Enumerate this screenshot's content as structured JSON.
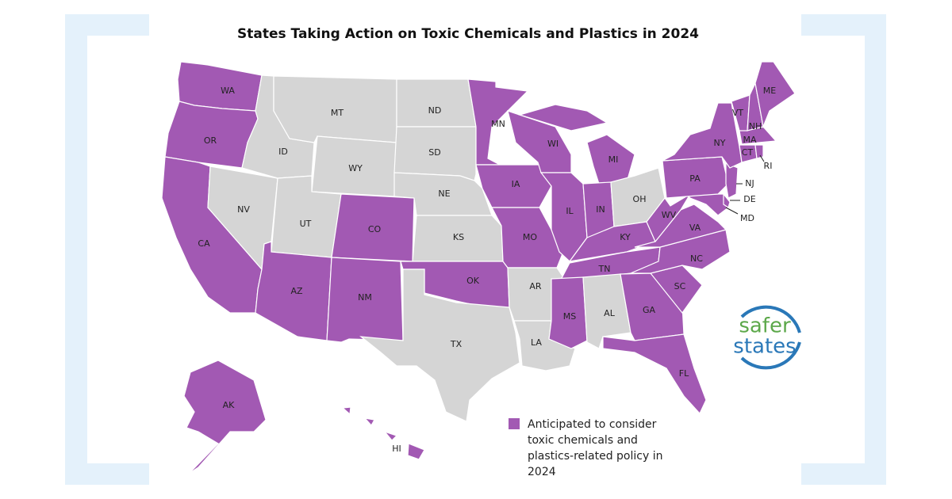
{
  "title": "States Taking Action on Toxic Chemicals and Plastics in 2024",
  "colors": {
    "action": "#a259b3",
    "other": "#d5d5d5",
    "border": "#ffffff"
  },
  "states": [
    {
      "abbr": "WA",
      "action": true
    },
    {
      "abbr": "OR",
      "action": true
    },
    {
      "abbr": "CA",
      "action": true
    },
    {
      "abbr": "NV",
      "action": false
    },
    {
      "abbr": "ID",
      "action": false
    },
    {
      "abbr": "MT",
      "action": false
    },
    {
      "abbr": "WY",
      "action": false
    },
    {
      "abbr": "UT",
      "action": false
    },
    {
      "abbr": "CO",
      "action": true
    },
    {
      "abbr": "AZ",
      "action": true
    },
    {
      "abbr": "NM",
      "action": true
    },
    {
      "abbr": "ND",
      "action": false
    },
    {
      "abbr": "SD",
      "action": false
    },
    {
      "abbr": "NE",
      "action": false
    },
    {
      "abbr": "KS",
      "action": false
    },
    {
      "abbr": "OK",
      "action": true
    },
    {
      "abbr": "TX",
      "action": false
    },
    {
      "abbr": "MN",
      "action": true
    },
    {
      "abbr": "IA",
      "action": true
    },
    {
      "abbr": "MO",
      "action": true
    },
    {
      "abbr": "AR",
      "action": false
    },
    {
      "abbr": "LA",
      "action": false
    },
    {
      "abbr": "WI",
      "action": true
    },
    {
      "abbr": "IL",
      "action": true
    },
    {
      "abbr": "MI",
      "action": true
    },
    {
      "abbr": "IN",
      "action": true
    },
    {
      "abbr": "OH",
      "action": false
    },
    {
      "abbr": "KY",
      "action": true
    },
    {
      "abbr": "TN",
      "action": true
    },
    {
      "abbr": "MS",
      "action": true
    },
    {
      "abbr": "AL",
      "action": false
    },
    {
      "abbr": "GA",
      "action": true
    },
    {
      "abbr": "FL",
      "action": true
    },
    {
      "abbr": "SC",
      "action": true
    },
    {
      "abbr": "NC",
      "action": true
    },
    {
      "abbr": "VA",
      "action": true
    },
    {
      "abbr": "WV",
      "action": true
    },
    {
      "abbr": "MD",
      "action": true
    },
    {
      "abbr": "DE",
      "action": true
    },
    {
      "abbr": "PA",
      "action": true
    },
    {
      "abbr": "NJ",
      "action": true
    },
    {
      "abbr": "NY",
      "action": true
    },
    {
      "abbr": "CT",
      "action": true
    },
    {
      "abbr": "RI",
      "action": true
    },
    {
      "abbr": "MA",
      "action": true
    },
    {
      "abbr": "VT",
      "action": true
    },
    {
      "abbr": "NH",
      "action": true
    },
    {
      "abbr": "ME",
      "action": true
    },
    {
      "abbr": "AK",
      "action": true
    },
    {
      "abbr": "HI",
      "action": true
    }
  ],
  "legend": {
    "lines": [
      "Anticipated to consider",
      "toxic chemicals and",
      "plastics-related policy in",
      "2024"
    ]
  },
  "logo": {
    "line1": "safer",
    "line2": "states"
  }
}
